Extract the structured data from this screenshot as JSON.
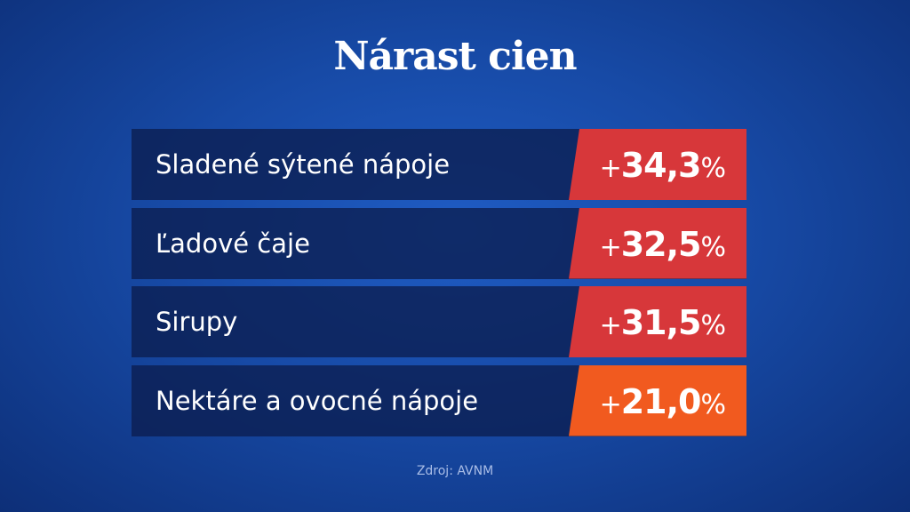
{
  "title": "Nárast cien",
  "rows": [
    {
      "label": "Sladené sýtené nápoje",
      "value": "+34,3%",
      "color": "#d7373a"
    },
    {
      "label": "Ľadové čaje",
      "value": "+32,5%",
      "color": "#d7373a"
    },
    {
      "label": "Sirupy",
      "value": "+31,5%",
      "color": "#d7373a"
    },
    {
      "label": "Nektáre a ovocné nápoje",
      "value": "+21,0%",
      "color": "#f15a1f"
    }
  ],
  "source": "Zdroj: AVNM"
}
